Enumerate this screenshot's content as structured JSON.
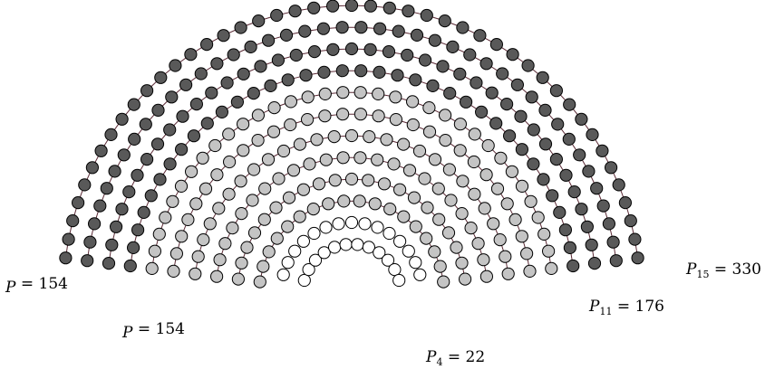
{
  "diagram": {
    "colors": {
      "background": "#ffffff",
      "dot_stroke": "#000000",
      "arc_line": "#5a2a35",
      "fill_white": "#ffffff",
      "fill_light": "#c4c4c4",
      "fill_dark": "#595959"
    },
    "rows": [
      {
        "row": 4,
        "dots": 12,
        "fill": "white"
      },
      {
        "row": 5,
        "dots": 15,
        "fill": "white"
      },
      {
        "row": 6,
        "dots": 18,
        "fill": "light"
      },
      {
        "row": 7,
        "dots": 21,
        "fill": "light"
      },
      {
        "row": 8,
        "dots": 24,
        "fill": "light"
      },
      {
        "row": 9,
        "dots": 27,
        "fill": "light"
      },
      {
        "row": 10,
        "dots": 30,
        "fill": "light"
      },
      {
        "row": 11,
        "dots": 34,
        "fill": "light"
      },
      {
        "row": 12,
        "dots": 36,
        "fill": "dark"
      },
      {
        "row": 13,
        "dots": 39,
        "fill": "dark"
      },
      {
        "row": 14,
        "dots": 42,
        "fill": "dark"
      },
      {
        "row": 15,
        "dots": 45,
        "fill": "dark"
      }
    ],
    "labels": {
      "left_upper": {
        "var": "P",
        "sub": "",
        "rest": " = 154"
      },
      "left_lower": {
        "var": "P",
        "sub": "",
        "rest": " = 154"
      },
      "inner": {
        "var": "P",
        "sub": "4",
        "rest": " = 22"
      },
      "middle": {
        "var": "P",
        "sub": "11",
        "rest": " = 176"
      },
      "outer": {
        "var": "P",
        "sub": "15",
        "rest": " = 330"
      }
    }
  }
}
